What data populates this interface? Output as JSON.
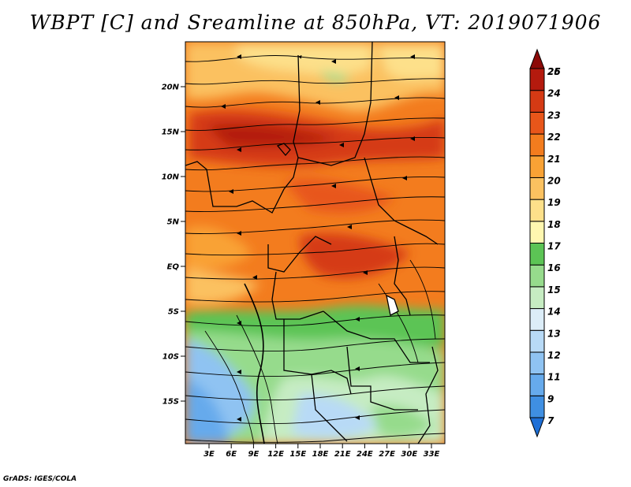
{
  "title": "WBPT [C] and Sreamline at 850hPa, VT: 2019071906",
  "credit": "GrADS: IGES/COLA",
  "map": {
    "lat_labels": [
      "20N",
      "15N",
      "10N",
      "5N",
      "EQ",
      "5S",
      "10S",
      "15S"
    ],
    "lat_values": [
      20,
      15,
      10,
      5,
      0,
      -5,
      -10,
      -15
    ],
    "lon_labels": [
      "3E",
      "6E",
      "9E",
      "12E",
      "15E",
      "18E",
      "21E",
      "24E",
      "27E",
      "30E",
      "33E"
    ],
    "lon_values": [
      3,
      6,
      9,
      12,
      15,
      18,
      21,
      24,
      27,
      30,
      33
    ]
  },
  "colorbar": {
    "labels": [
      "7",
      "9",
      "11",
      "12",
      "13",
      "14",
      "15",
      "16",
      "17",
      "18",
      "19",
      "20",
      "21",
      "22",
      "23",
      "24",
      "25",
      "26"
    ],
    "colors": [
      "#1e6fd6",
      "#3f8fe2",
      "#66aaec",
      "#8fc3f2",
      "#b8daf6",
      "#dcedf8",
      "#c6ecc2",
      "#96db8c",
      "#5cc455",
      "#fff7b0",
      "#fde08a",
      "#fbc160",
      "#f9a235",
      "#f37c1e",
      "#e8561a",
      "#d53a14",
      "#b41a0e",
      "#8c0a08"
    ]
  }
}
